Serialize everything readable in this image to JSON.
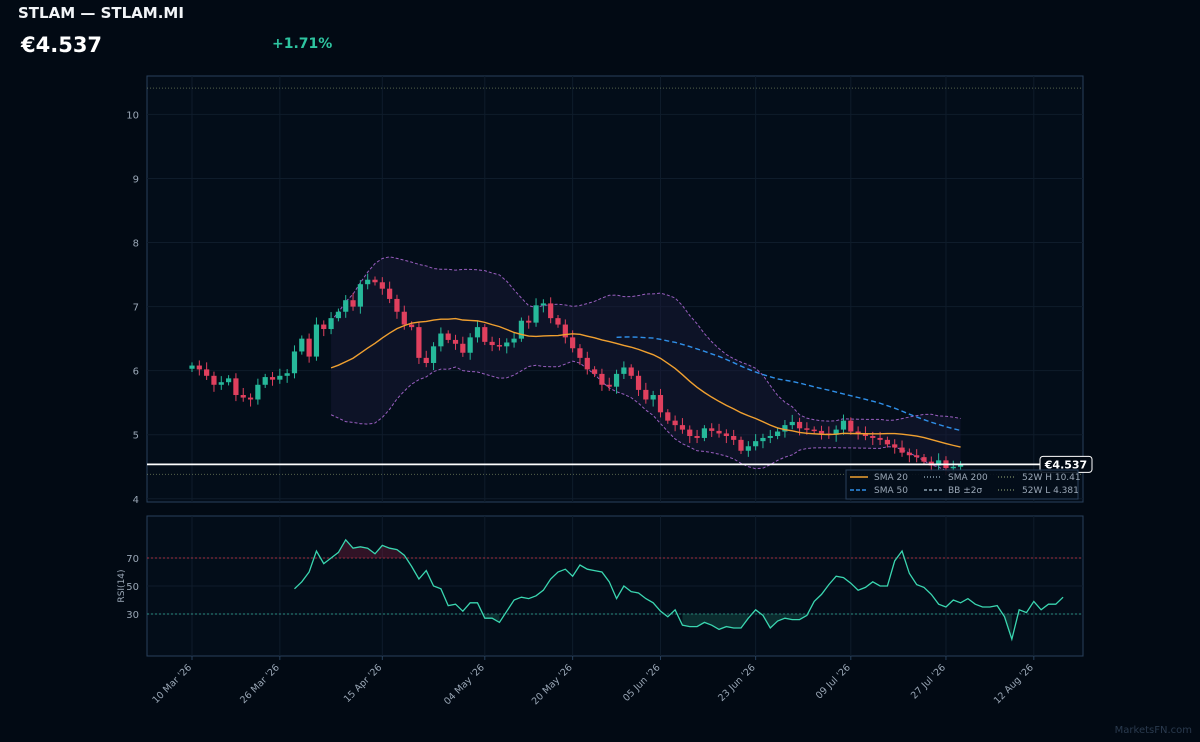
{
  "header": {
    "title": "STLAM — STLAM.MI",
    "price": "€4.537",
    "change": "+1.71%"
  },
  "watermark": "MarketsFN.com",
  "colors": {
    "background": "#020a14",
    "up": "#26b99a",
    "down": "#e0405e",
    "sma20": "#f0a030",
    "sma50": "#2f8fe8",
    "bollinger": "#9a5fc0",
    "rsi": "#3ad6b0",
    "price_line": "#ffffff"
  },
  "chart_data": [
    {
      "type": "candlestick",
      "title": "",
      "ylim": [
        3.95,
        10.6
      ],
      "yticks": [
        4,
        5,
        6,
        7,
        8,
        9,
        10
      ],
      "x_tick_labels": [
        "10 Mar '26",
        "26 Mar '26",
        "15 Apr '26",
        "04 May '26",
        "20 May '26",
        "05 Jun '26",
        "23 Jun '26",
        "09 Jul '26",
        "27 Jul '26",
        "12 Aug '26"
      ],
      "x_tick_index": [
        0,
        12,
        26,
        40,
        52,
        64,
        77,
        90,
        103,
        115
      ],
      "last_price_label": "€4.537",
      "last_price": 4.537,
      "high_52w": 10.41,
      "low_52w": 4.381,
      "legend": [
        "SMA 20",
        "SMA 50",
        "SMA 200",
        "BB ±2σ",
        "52W H 10.41",
        "52W L 4.381"
      ],
      "legend_position": "bottom-right",
      "closes": [
        6.08,
        6.02,
        5.92,
        5.78,
        5.82,
        5.88,
        5.62,
        5.58,
        5.55,
        5.78,
        5.9,
        5.86,
        5.92,
        5.96,
        6.3,
        6.5,
        6.22,
        6.72,
        6.65,
        6.82,
        6.92,
        7.1,
        7.0,
        7.35,
        7.42,
        7.38,
        7.28,
        7.12,
        6.92,
        6.72,
        6.68,
        6.2,
        6.12,
        6.38,
        6.58,
        6.48,
        6.42,
        6.28,
        6.52,
        6.68,
        6.45,
        6.4,
        6.38,
        6.44,
        6.5,
        6.78,
        6.75,
        7.02,
        7.05,
        6.82,
        6.72,
        6.52,
        6.35,
        6.2,
        6.02,
        5.95,
        5.78,
        5.75,
        5.95,
        6.05,
        5.92,
        5.7,
        5.55,
        5.62,
        5.35,
        5.22,
        5.15,
        5.08,
        4.98,
        4.95,
        5.1,
        5.06,
        5.02,
        4.98,
        4.92,
        4.75,
        4.82,
        4.9,
        4.95,
        4.98,
        5.05,
        5.15,
        5.2,
        5.1,
        5.08,
        5.06,
        5.02,
        5.0,
        5.08,
        5.22,
        5.05,
        5.02,
        4.98,
        4.95,
        4.92,
        4.85,
        4.8,
        4.72,
        4.68,
        4.65,
        4.58,
        4.52,
        4.6,
        4.48,
        4.5,
        4.537
      ],
      "sma20_start_index": 19,
      "sma50_start_index": 58,
      "bb_start_index": 19,
      "rsi": {
        "ylabel": "RSI(14)",
        "ylim": [
          0,
          100
        ],
        "yticks": [
          30,
          50,
          70
        ],
        "overbought": 70,
        "oversold": 30,
        "start_index": 14,
        "values": [
          48,
          53,
          60,
          75,
          66,
          70,
          74,
          83,
          77,
          78,
          77,
          73,
          79,
          77,
          76,
          72,
          64,
          55,
          61,
          50,
          48,
          36,
          37,
          32,
          38,
          38,
          27,
          27,
          24,
          32,
          40,
          42,
          41,
          43,
          47,
          55,
          60,
          62,
          57,
          65,
          62,
          61,
          60,
          53,
          41,
          50,
          46,
          45,
          41,
          38,
          32,
          28,
          33,
          22,
          21,
          21,
          24,
          22,
          19,
          21,
          20,
          20,
          27,
          33,
          29,
          20,
          25,
          27,
          26,
          26,
          29,
          39,
          44,
          51,
          57,
          56,
          52,
          47,
          49,
          53,
          50,
          50,
          68,
          75,
          59,
          51,
          49,
          44,
          37,
          35,
          40,
          38,
          41,
          37,
          35,
          35,
          36,
          28,
          12,
          33,
          31,
          39,
          33,
          37,
          37,
          42
        ]
      }
    }
  ]
}
